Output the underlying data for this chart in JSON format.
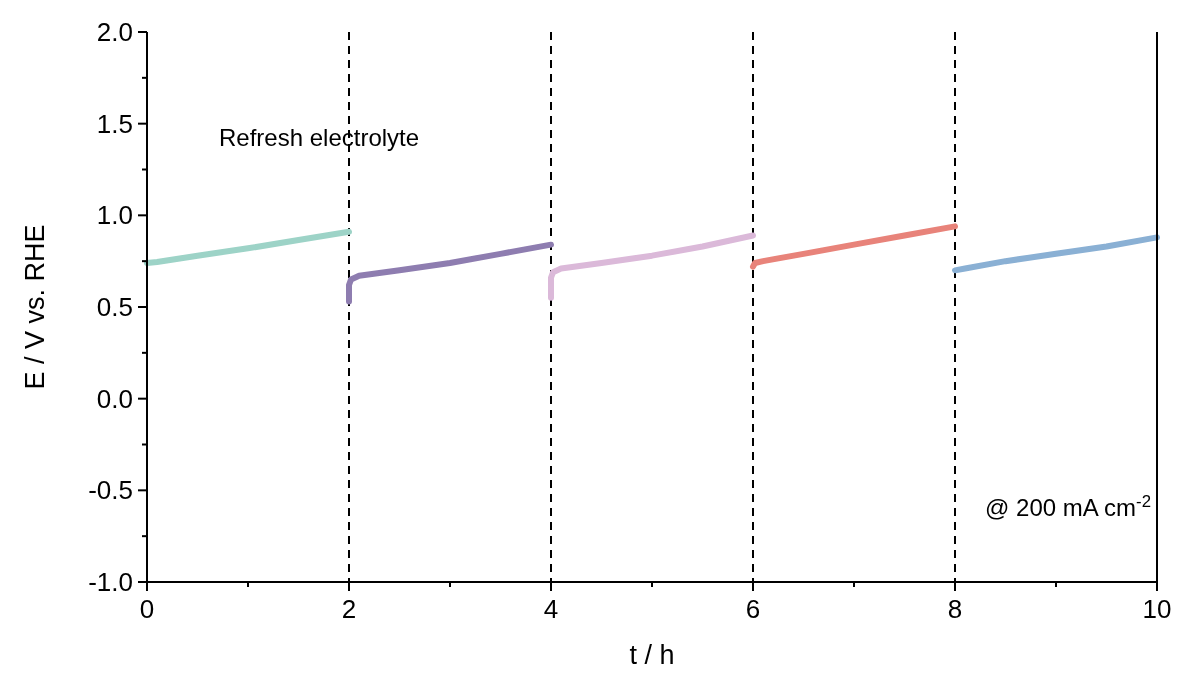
{
  "chart_data": {
    "type": "line",
    "xlabel": "t / h",
    "ylabel": "E / V vs. RHE",
    "xlim": [
      0,
      10
    ],
    "ylim": [
      -1,
      2
    ],
    "xticks": [
      0,
      {
        "value": 1,
        "label": null
      },
      2,
      {
        "value": 3,
        "label": null
      },
      4,
      {
        "value": 5,
        "label": null
      },
      6,
      {
        "value": 7,
        "label": null
      },
      8,
      {
        "value": 9,
        "label": null
      },
      10
    ],
    "yticks": [
      {
        "value": -1,
        "label": "-1.0"
      },
      {
        "value": -0.75,
        "label": null
      },
      {
        "value": -0.5,
        "label": "-0.5"
      },
      {
        "value": -0.25,
        "label": null
      },
      {
        "value": 0,
        "label": "0.0"
      },
      {
        "value": 0.25,
        "label": null
      },
      {
        "value": 0.5,
        "label": "0.5"
      },
      {
        "value": 0.75,
        "label": null
      },
      {
        "value": 1,
        "label": "1.0"
      },
      {
        "value": 1.25,
        "label": null
      },
      {
        "value": 1.5,
        "label": "1.5"
      },
      {
        "value": 1.75,
        "label": null
      },
      {
        "value": 2,
        "label": "2.0"
      }
    ],
    "series": [
      {
        "color": "#9dd3c7",
        "x": [
          0,
          0.1,
          0.5,
          1,
          1.5,
          2
        ],
        "values": [
          0.74,
          0.745,
          0.78,
          0.82,
          0.865,
          0.91
        ]
      },
      {
        "color": "#8e7db0",
        "x": [
          2,
          2,
          2.02,
          2.1,
          2.5,
          3,
          3.5,
          4
        ],
        "values": [
          0.53,
          0.62,
          0.65,
          0.67,
          0.7,
          0.74,
          0.79,
          0.84
        ]
      },
      {
        "color": "#dbb9d9",
        "x": [
          4,
          4,
          4.02,
          4.1,
          4.5,
          5,
          5.5,
          6
        ],
        "values": [
          0.55,
          0.66,
          0.69,
          0.71,
          0.74,
          0.78,
          0.83,
          0.89
        ]
      },
      {
        "color": "#e8837a",
        "x": [
          6,
          6.02,
          6.1,
          6.5,
          7,
          7.5,
          8
        ],
        "values": [
          0.72,
          0.74,
          0.75,
          0.79,
          0.84,
          0.89,
          0.94
        ]
      },
      {
        "color": "#8ab0d4",
        "x": [
          8,
          8.1,
          8.5,
          9,
          9.5,
          10
        ],
        "values": [
          0.7,
          0.71,
          0.75,
          0.79,
          0.83,
          0.88
        ]
      }
    ],
    "ref_lines": [
      {
        "axis": "x",
        "value": 2,
        "color": "#000000",
        "line_style": "dashed"
      },
      {
        "axis": "x",
        "value": 4,
        "color": "#000000",
        "line_style": "dashed"
      },
      {
        "axis": "x",
        "value": 6,
        "color": "#000000",
        "line_style": "dashed"
      },
      {
        "axis": "x",
        "value": 8,
        "color": "#000000",
        "line_style": "dashed"
      }
    ],
    "annotations": [
      "Refresh electrolyte",
      "@ 200 mA cm$^{-2}$"
    ],
    "grid": false,
    "line_style": "solid"
  }
}
